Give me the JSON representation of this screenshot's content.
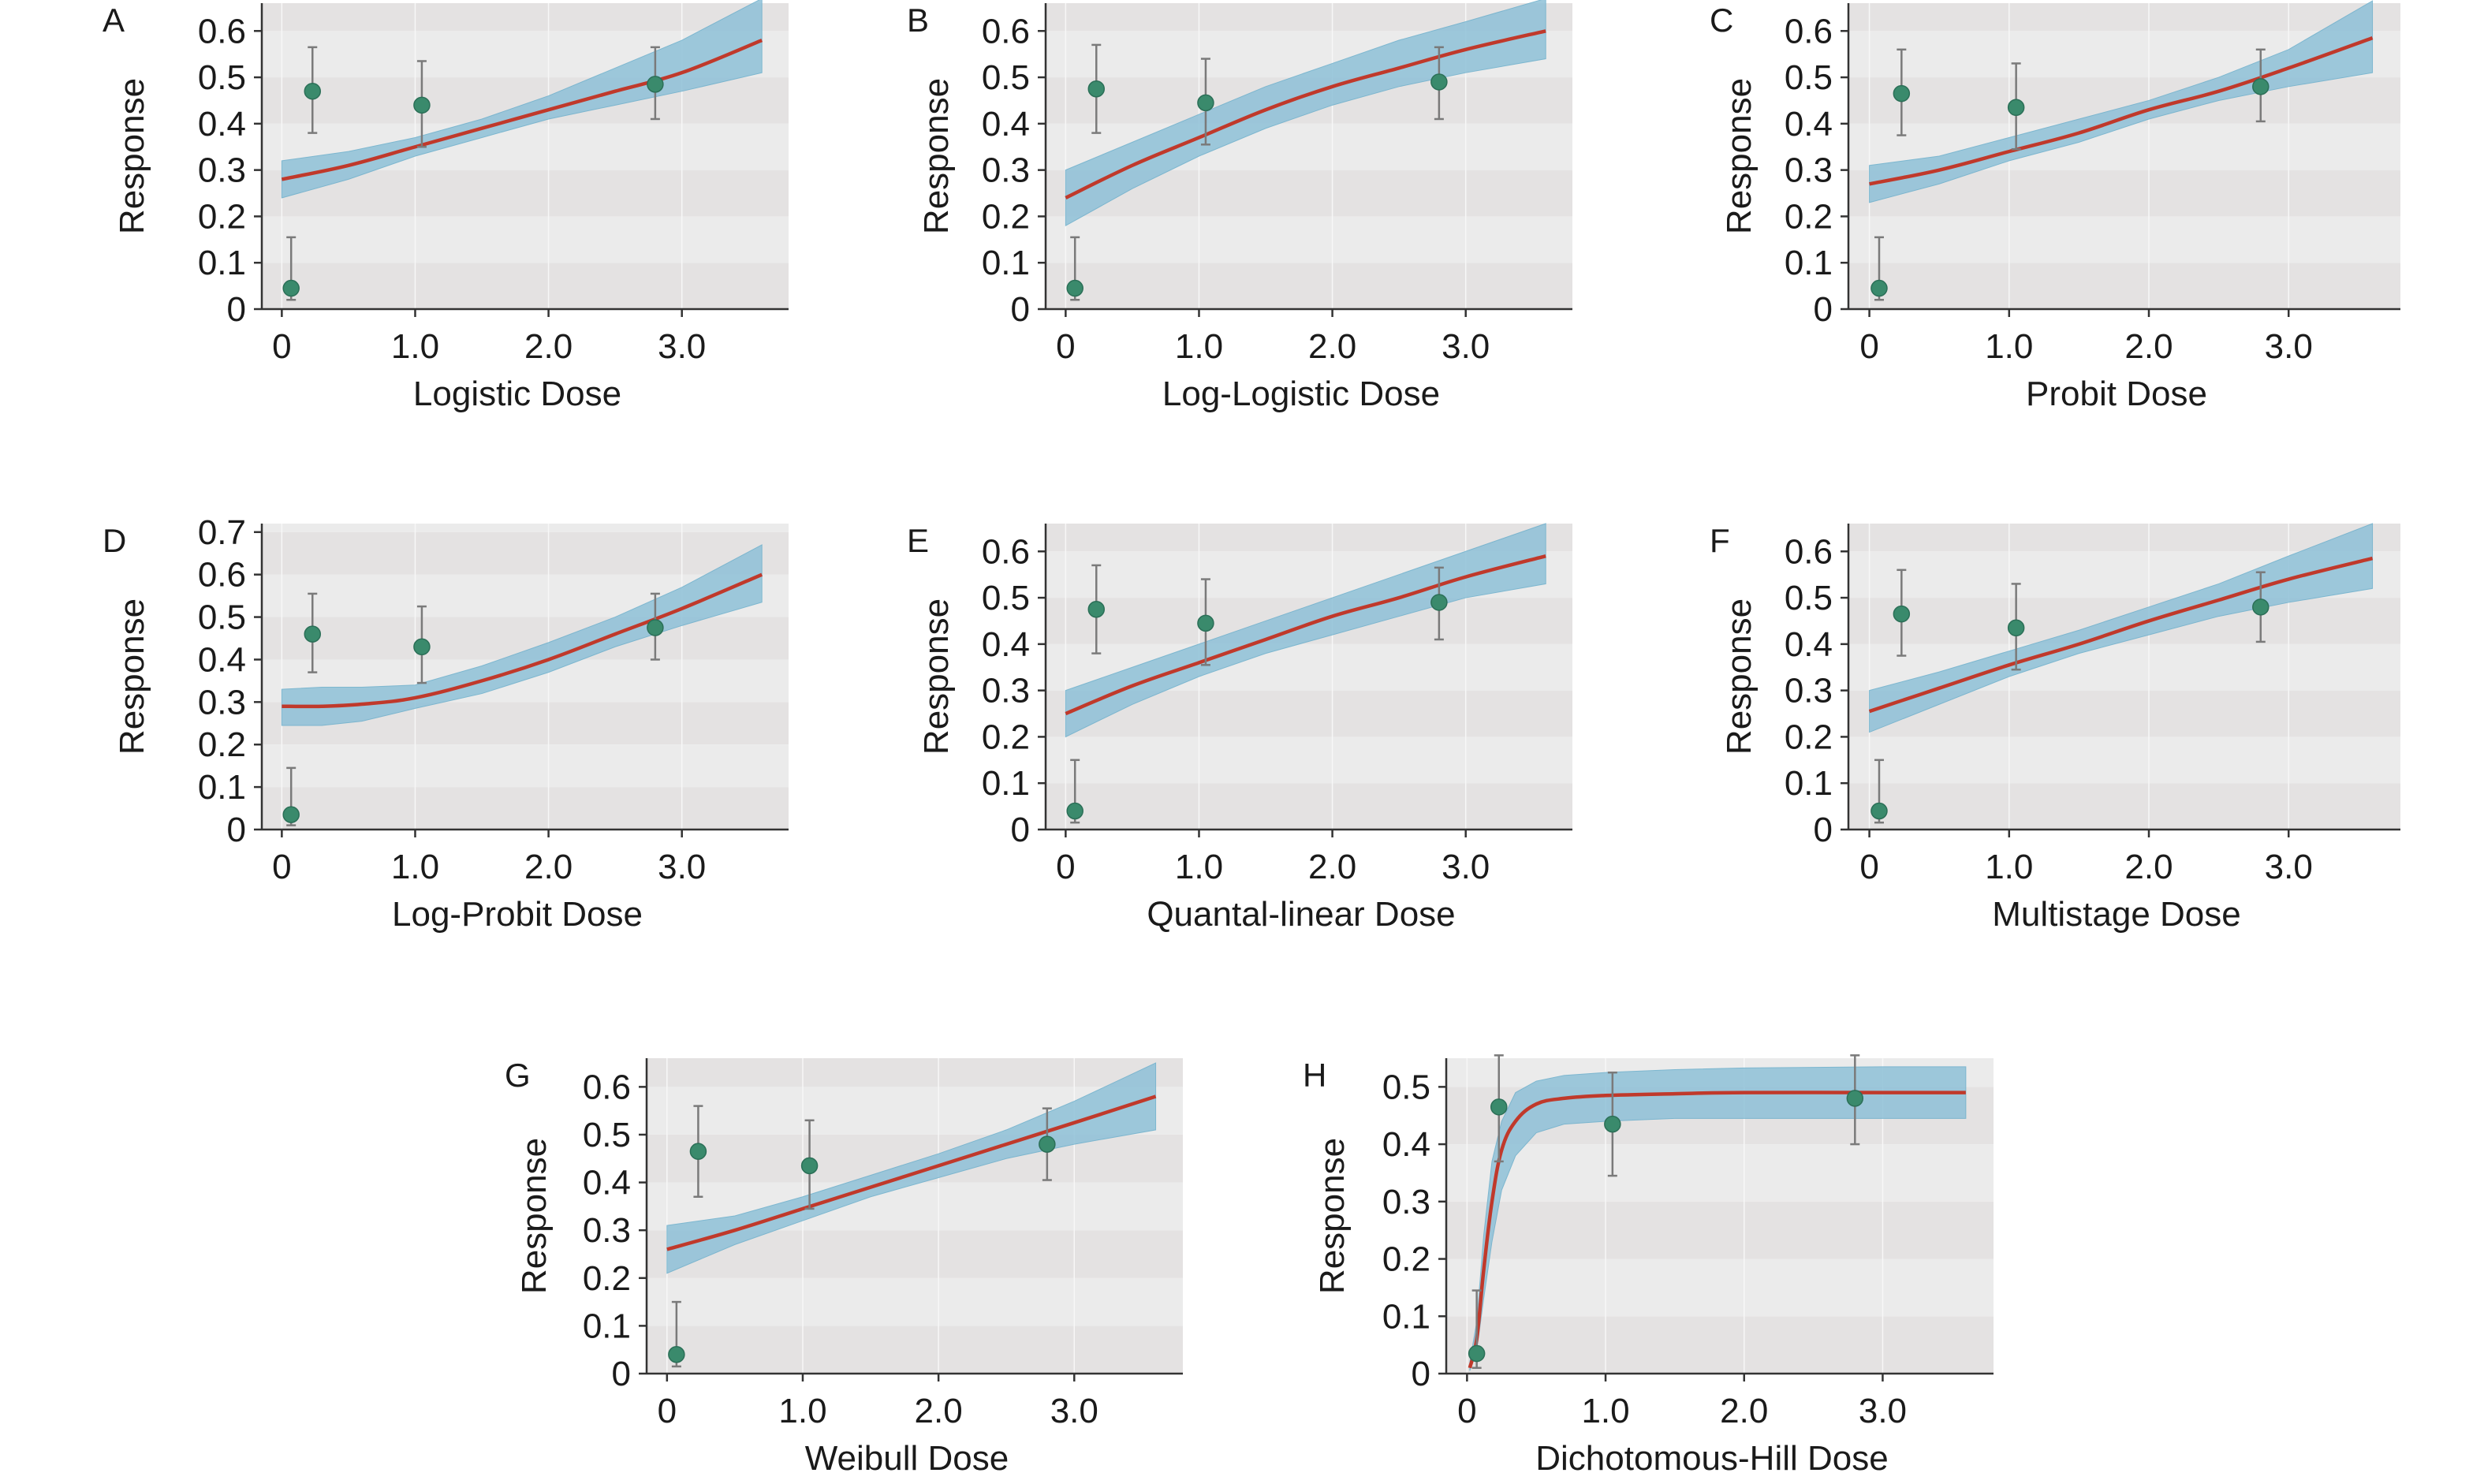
{
  "colors": {
    "fit_line": "#c0392b",
    "ci_band": "#8fc1d8",
    "point": "#3a8a6c",
    "error_bar": "#7a7a7a"
  },
  "chart_data": [
    {
      "panel": "A",
      "type": "line",
      "xlabel": "Logistic Dose",
      "ylabel": "Response",
      "xticks": [
        "0",
        "1.0",
        "2.0",
        "3.0"
      ],
      "yticks": [
        "0",
        "0.1",
        "0.2",
        "0.3",
        "0.4",
        "0.5",
        "0.6"
      ],
      "xlim": [
        -0.15,
        3.8
      ],
      "ylim": [
        0,
        0.66
      ],
      "fit": {
        "x": [
          0.0,
          0.5,
          1.0,
          1.5,
          2.0,
          2.5,
          3.0,
          3.6
        ],
        "y": [
          0.28,
          0.31,
          0.35,
          0.39,
          0.43,
          0.47,
          0.51,
          0.58
        ]
      },
      "ci_lower": [
        0.24,
        0.28,
        0.33,
        0.37,
        0.41,
        0.44,
        0.47,
        0.51
      ],
      "ci_upper": [
        0.32,
        0.34,
        0.37,
        0.41,
        0.46,
        0.52,
        0.58,
        0.67
      ],
      "points": [
        {
          "x": 0.07,
          "y": 0.045,
          "lo": 0.02,
          "hi": 0.155
        },
        {
          "x": 0.23,
          "y": 0.47,
          "lo": 0.38,
          "hi": 0.565
        },
        {
          "x": 1.05,
          "y": 0.44,
          "lo": 0.35,
          "hi": 0.535
        },
        {
          "x": 2.8,
          "y": 0.485,
          "lo": 0.41,
          "hi": 0.565
        }
      ]
    },
    {
      "panel": "B",
      "type": "line",
      "xlabel": "Log-Logistic Dose",
      "ylabel": "Response",
      "xticks": [
        "0",
        "1.0",
        "2.0",
        "3.0"
      ],
      "yticks": [
        "0",
        "0.1",
        "0.2",
        "0.3",
        "0.4",
        "0.5",
        "0.6"
      ],
      "xlim": [
        -0.15,
        3.8
      ],
      "ylim": [
        0,
        0.66
      ],
      "fit": {
        "x": [
          0.0,
          0.5,
          1.0,
          1.5,
          2.0,
          2.5,
          3.0,
          3.6
        ],
        "y": [
          0.24,
          0.31,
          0.37,
          0.43,
          0.48,
          0.52,
          0.56,
          0.6
        ]
      },
      "ci_lower": [
        0.18,
        0.26,
        0.33,
        0.39,
        0.44,
        0.48,
        0.51,
        0.54
      ],
      "ci_upper": [
        0.3,
        0.36,
        0.42,
        0.48,
        0.53,
        0.58,
        0.62,
        0.67
      ],
      "points": [
        {
          "x": 0.07,
          "y": 0.045,
          "lo": 0.02,
          "hi": 0.155
        },
        {
          "x": 0.23,
          "y": 0.475,
          "lo": 0.38,
          "hi": 0.57
        },
        {
          "x": 1.05,
          "y": 0.445,
          "lo": 0.355,
          "hi": 0.54
        },
        {
          "x": 2.8,
          "y": 0.49,
          "lo": 0.41,
          "hi": 0.565
        }
      ]
    },
    {
      "panel": "C",
      "type": "line",
      "xlabel": "Probit Dose",
      "ylabel": "Response",
      "xticks": [
        "0",
        "1.0",
        "2.0",
        "3.0"
      ],
      "yticks": [
        "0",
        "0.1",
        "0.2",
        "0.3",
        "0.4",
        "0.5",
        "0.6"
      ],
      "xlim": [
        -0.15,
        3.8
      ],
      "ylim": [
        0,
        0.66
      ],
      "fit": {
        "x": [
          0.0,
          0.5,
          1.0,
          1.5,
          2.0,
          2.5,
          3.0,
          3.6
        ],
        "y": [
          0.27,
          0.3,
          0.34,
          0.38,
          0.43,
          0.47,
          0.52,
          0.585
        ]
      },
      "ci_lower": [
        0.23,
        0.27,
        0.32,
        0.36,
        0.41,
        0.45,
        0.48,
        0.51
      ],
      "ci_upper": [
        0.31,
        0.33,
        0.37,
        0.41,
        0.45,
        0.5,
        0.56,
        0.665
      ],
      "points": [
        {
          "x": 0.07,
          "y": 0.045,
          "lo": 0.02,
          "hi": 0.155
        },
        {
          "x": 0.23,
          "y": 0.465,
          "lo": 0.375,
          "hi": 0.56
        },
        {
          "x": 1.05,
          "y": 0.435,
          "lo": 0.345,
          "hi": 0.53
        },
        {
          "x": 2.8,
          "y": 0.48,
          "lo": 0.405,
          "hi": 0.56
        }
      ]
    },
    {
      "panel": "D",
      "type": "line",
      "xlabel": "Log-Probit Dose",
      "ylabel": "Response",
      "xticks": [
        "0",
        "1.0",
        "2.0",
        "3.0"
      ],
      "yticks": [
        "0",
        "0.1",
        "0.2",
        "0.3",
        "0.4",
        "0.5",
        "0.6",
        "0.7"
      ],
      "xlim": [
        -0.15,
        3.8
      ],
      "ylim": [
        0,
        0.72
      ],
      "fit": {
        "x": [
          0.0,
          0.3,
          0.6,
          1.0,
          1.5,
          2.0,
          2.5,
          3.0,
          3.6
        ],
        "y": [
          0.29,
          0.29,
          0.295,
          0.31,
          0.35,
          0.4,
          0.46,
          0.52,
          0.6
        ]
      },
      "ci_lower": [
        0.245,
        0.245,
        0.255,
        0.285,
        0.32,
        0.37,
        0.43,
        0.48,
        0.535
      ],
      "ci_upper": [
        0.33,
        0.335,
        0.335,
        0.34,
        0.385,
        0.44,
        0.5,
        0.57,
        0.67
      ],
      "points": [
        {
          "x": 0.07,
          "y": 0.035,
          "lo": 0.01,
          "hi": 0.145
        },
        {
          "x": 0.23,
          "y": 0.46,
          "lo": 0.37,
          "hi": 0.555
        },
        {
          "x": 1.05,
          "y": 0.43,
          "lo": 0.345,
          "hi": 0.525
        },
        {
          "x": 2.8,
          "y": 0.475,
          "lo": 0.4,
          "hi": 0.555
        }
      ]
    },
    {
      "panel": "E",
      "type": "line",
      "xlabel": "Quantal-linear Dose",
      "ylabel": "Response",
      "xticks": [
        "0",
        "1.0",
        "2.0",
        "3.0"
      ],
      "yticks": [
        "0",
        "0.1",
        "0.2",
        "0.3",
        "0.4",
        "0.5",
        "0.6"
      ],
      "xlim": [
        -0.15,
        3.8
      ],
      "ylim": [
        0,
        0.66
      ],
      "fit": {
        "x": [
          0.0,
          0.5,
          1.0,
          1.5,
          2.0,
          2.5,
          3.0,
          3.6
        ],
        "y": [
          0.25,
          0.31,
          0.36,
          0.41,
          0.46,
          0.5,
          0.545,
          0.59
        ]
      },
      "ci_lower": [
        0.2,
        0.27,
        0.33,
        0.38,
        0.42,
        0.46,
        0.5,
        0.53
      ],
      "ci_upper": [
        0.3,
        0.35,
        0.4,
        0.45,
        0.5,
        0.55,
        0.6,
        0.66
      ],
      "points": [
        {
          "x": 0.07,
          "y": 0.04,
          "lo": 0.015,
          "hi": 0.15
        },
        {
          "x": 0.23,
          "y": 0.475,
          "lo": 0.38,
          "hi": 0.57
        },
        {
          "x": 1.05,
          "y": 0.445,
          "lo": 0.355,
          "hi": 0.54
        },
        {
          "x": 2.8,
          "y": 0.49,
          "lo": 0.41,
          "hi": 0.565
        }
      ]
    },
    {
      "panel": "F",
      "type": "line",
      "xlabel": "Multistage Dose",
      "ylabel": "Response",
      "xticks": [
        "0",
        "1.0",
        "2.0",
        "3.0"
      ],
      "yticks": [
        "0",
        "0.1",
        "0.2",
        "0.3",
        "0.4",
        "0.5",
        "0.6"
      ],
      "xlim": [
        -0.15,
        3.8
      ],
      "ylim": [
        0,
        0.66
      ],
      "fit": {
        "x": [
          0.0,
          0.5,
          1.0,
          1.5,
          2.0,
          2.5,
          3.0,
          3.6
        ],
        "y": [
          0.255,
          0.305,
          0.355,
          0.4,
          0.45,
          0.495,
          0.54,
          0.585
        ]
      },
      "ci_lower": [
        0.21,
        0.27,
        0.33,
        0.38,
        0.42,
        0.46,
        0.49,
        0.52
      ],
      "ci_upper": [
        0.3,
        0.34,
        0.385,
        0.43,
        0.48,
        0.53,
        0.59,
        0.66
      ],
      "points": [
        {
          "x": 0.07,
          "y": 0.04,
          "lo": 0.015,
          "hi": 0.15
        },
        {
          "x": 0.23,
          "y": 0.465,
          "lo": 0.375,
          "hi": 0.56
        },
        {
          "x": 1.05,
          "y": 0.435,
          "lo": 0.345,
          "hi": 0.53
        },
        {
          "x": 2.8,
          "y": 0.48,
          "lo": 0.405,
          "hi": 0.555
        }
      ]
    },
    {
      "panel": "G",
      "type": "line",
      "xlabel": "Weibull Dose",
      "ylabel": "Response",
      "xticks": [
        "0",
        "1.0",
        "2.0",
        "3.0"
      ],
      "yticks": [
        "0",
        "0.1",
        "0.2",
        "0.3",
        "0.4",
        "0.5",
        "0.6"
      ],
      "xlim": [
        -0.15,
        3.8
      ],
      "ylim": [
        0,
        0.66
      ],
      "fit": {
        "x": [
          0.0,
          0.5,
          1.0,
          1.5,
          2.0,
          2.5,
          3.0,
          3.6
        ],
        "y": [
          0.26,
          0.3,
          0.345,
          0.39,
          0.435,
          0.48,
          0.525,
          0.58
        ]
      },
      "ci_lower": [
        0.21,
        0.27,
        0.32,
        0.37,
        0.41,
        0.45,
        0.48,
        0.51
      ],
      "ci_upper": [
        0.31,
        0.33,
        0.37,
        0.415,
        0.46,
        0.51,
        0.57,
        0.65
      ],
      "points": [
        {
          "x": 0.07,
          "y": 0.04,
          "lo": 0.015,
          "hi": 0.15
        },
        {
          "x": 0.23,
          "y": 0.465,
          "lo": 0.37,
          "hi": 0.56
        },
        {
          "x": 1.05,
          "y": 0.435,
          "lo": 0.345,
          "hi": 0.53
        },
        {
          "x": 2.8,
          "y": 0.48,
          "lo": 0.405,
          "hi": 0.555
        }
      ]
    },
    {
      "panel": "H",
      "type": "line",
      "xlabel": "Dichotomous-Hill Dose",
      "ylabel": "Response",
      "xticks": [
        "0",
        "1.0",
        "2.0",
        "3.0"
      ],
      "yticks": [
        "0",
        "0.1",
        "0.2",
        "0.3",
        "0.4",
        "0.5"
      ],
      "xlim": [
        -0.15,
        3.8
      ],
      "ylim": [
        0,
        0.55
      ],
      "fit": {
        "x": [
          0.02,
          0.07,
          0.12,
          0.18,
          0.25,
          0.35,
          0.5,
          0.7,
          1.0,
          1.5,
          2.0,
          3.0,
          3.6
        ],
        "y": [
          0.01,
          0.06,
          0.18,
          0.3,
          0.39,
          0.44,
          0.47,
          0.48,
          0.485,
          0.488,
          0.49,
          0.49,
          0.49
        ]
      },
      "ci_lower": [
        0.005,
        0.04,
        0.13,
        0.23,
        0.32,
        0.38,
        0.42,
        0.435,
        0.44,
        0.445,
        0.445,
        0.445,
        0.445
      ],
      "ci_upper": [
        0.02,
        0.09,
        0.24,
        0.37,
        0.44,
        0.49,
        0.51,
        0.52,
        0.525,
        0.53,
        0.533,
        0.535,
        0.535
      ],
      "points": [
        {
          "x": 0.07,
          "y": 0.035,
          "lo": 0.01,
          "hi": 0.145
        },
        {
          "x": 0.23,
          "y": 0.465,
          "lo": 0.37,
          "hi": 0.555
        },
        {
          "x": 1.05,
          "y": 0.435,
          "lo": 0.345,
          "hi": 0.525
        },
        {
          "x": 2.8,
          "y": 0.48,
          "lo": 0.4,
          "hi": 0.555
        }
      ]
    }
  ]
}
